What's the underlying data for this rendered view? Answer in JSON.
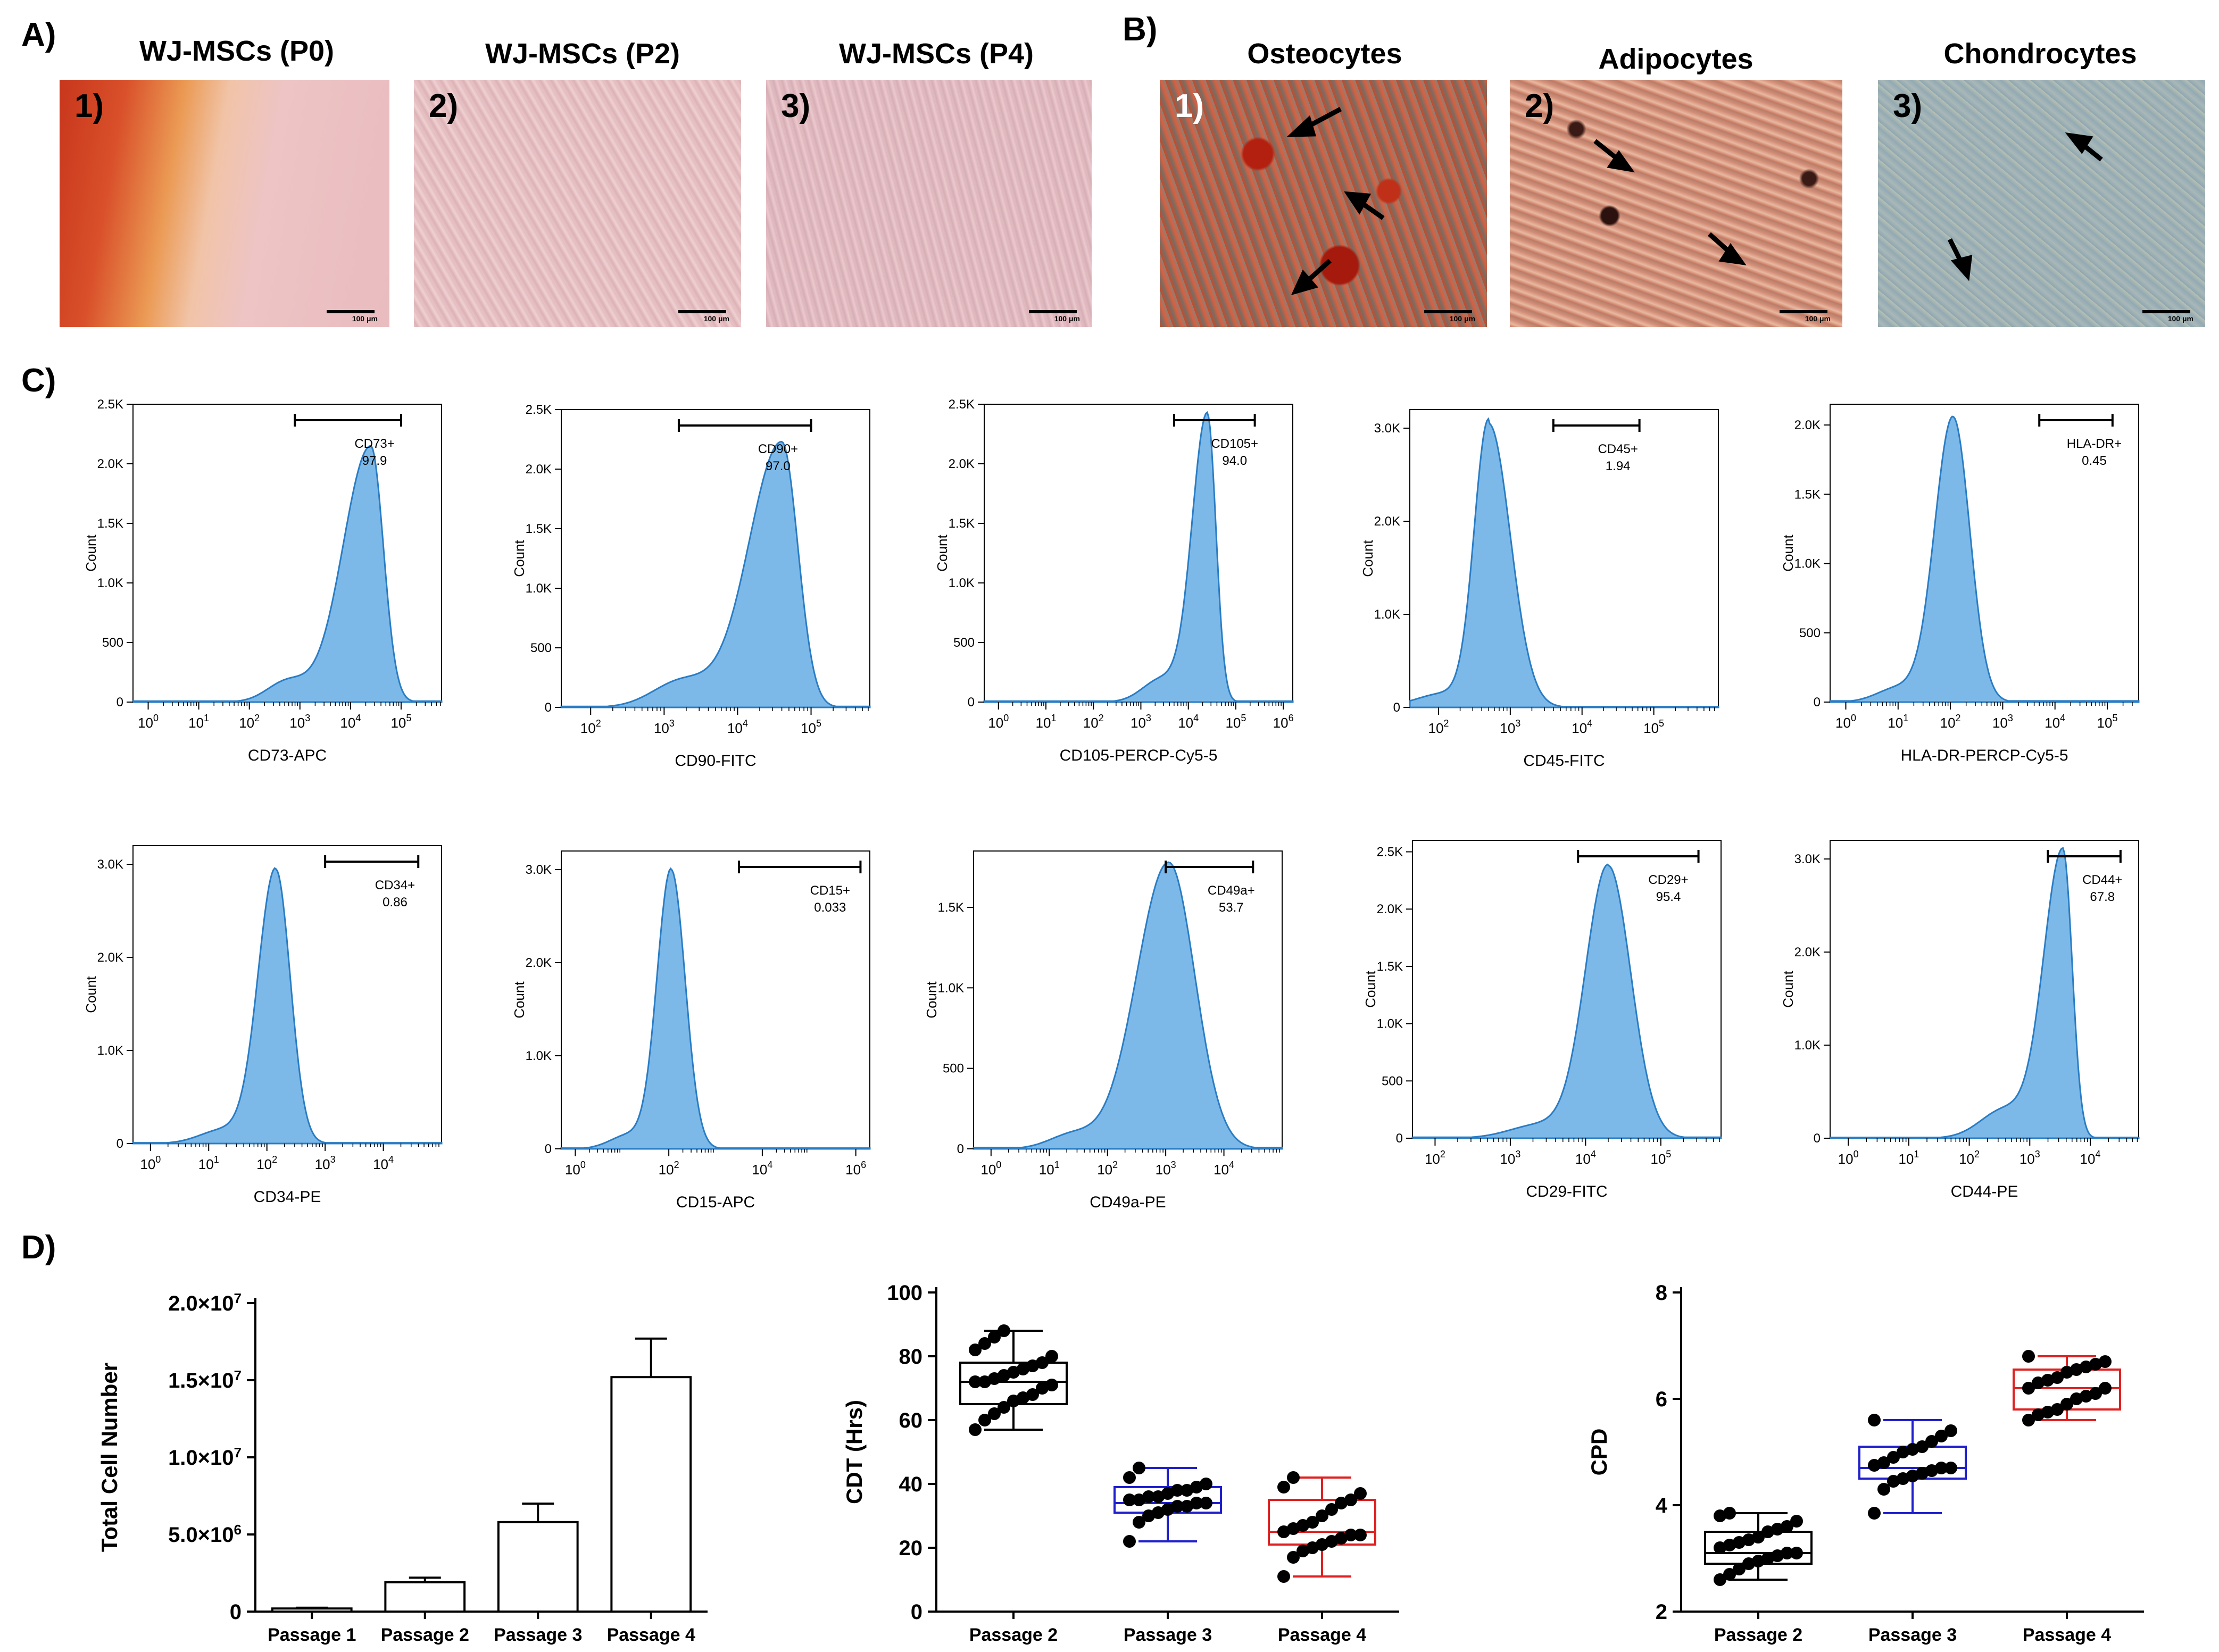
{
  "panel_labels": {
    "a": "A)",
    "b": "B)",
    "c": "C)",
    "d": "D)"
  },
  "panel_a": {
    "images": [
      {
        "title": "WJ-MSCs (P0)",
        "num": "1)",
        "scale": "100 μm"
      },
      {
        "title": "WJ-MSCs (P2)",
        "num": "2)",
        "scale": "100 μm"
      },
      {
        "title": "WJ-MSCs (P4)",
        "num": "3)",
        "scale": "100 μm"
      }
    ]
  },
  "panel_b": {
    "images": [
      {
        "title": "Osteocytes",
        "num": "1)",
        "scale": "100 μm"
      },
      {
        "title": "Adipocytes",
        "num": "2)",
        "scale": "100 μm"
      },
      {
        "title": "Chondrocytes",
        "num": "3)",
        "scale": "100 μm"
      }
    ]
  },
  "colors": {
    "histogram_fill": "#7db9e8",
    "histogram_line": "#2a7dc4",
    "box_p2": "#000000",
    "box_p3": "#1f1fcc",
    "box_p4": "#e02020"
  },
  "chart_data": [
    {
      "type": "area",
      "ylabel": "Count",
      "xlabel": "CD73-APC",
      "yticks": [
        "0",
        "500",
        "1.0K",
        "1.5K",
        "2.0K",
        "2.5K"
      ],
      "ylim": [
        0,
        2500
      ],
      "xticks": [
        "10<tspan dy='-12' font-size='16'>0</tspan>",
        "10<tspan dy='-12' font-size='16'>1</tspan>",
        "10<tspan dy='-12' font-size='16'>2</tspan>",
        "10<tspan dy='-12' font-size='16'>3</tspan>",
        "10<tspan dy='-12' font-size='16'>4</tspan>",
        "10<tspan dy='-12' font-size='16'>5</tspan>"
      ],
      "xt_exp": [
        0,
        1,
        2,
        3,
        4,
        5
      ],
      "xmin": -0.3,
      "xmax": 5.8,
      "gate_name": "CD73+",
      "gate_value": "97.9",
      "gate": [
        2.9,
        5.0
      ],
      "peak_x": 4.4,
      "peak_y": 2150,
      "sigma_l": 0.55,
      "sigma_r": 0.25,
      "tail": 0.08
    },
    {
      "type": "area",
      "ylabel": "Count",
      "xlabel": "CD90-FITC",
      "yticks": [
        "0",
        "500",
        "1.0K",
        "1.5K",
        "2.0K",
        "2.5K"
      ],
      "ylim": [
        0,
        2500
      ],
      "xt_exp": [
        2,
        3,
        4,
        5
      ],
      "xmin": 1.6,
      "xmax": 5.8,
      "gate_name": "CD90+",
      "gate_value": "97.0",
      "gate": [
        3.2,
        5.0
      ],
      "peak_x": 4.6,
      "peak_y": 2230,
      "sigma_l": 0.45,
      "sigma_r": 0.22,
      "tail": 0.1
    },
    {
      "type": "area",
      "ylabel": "Count",
      "xlabel": "CD105-PERCP-Cy5-5",
      "yticks": [
        "0",
        "500",
        "1.0K",
        "1.5K",
        "2.0K",
        "2.5K"
      ],
      "ylim": [
        0,
        2500
      ],
      "xt_exp": [
        0,
        1,
        2,
        3,
        4,
        5,
        6
      ],
      "xmin": -0.3,
      "xmax": 6.2,
      "gate_name": "CD105+",
      "gate_value": "94.0",
      "gate": [
        3.7,
        5.4
      ],
      "peak_x": 4.4,
      "peak_y": 2420,
      "sigma_l": 0.32,
      "sigma_r": 0.18,
      "tail": 0.08
    },
    {
      "type": "area",
      "ylabel": "Count",
      "xlabel": "CD45-FITC",
      "yticks": [
        "0",
        "1.0K",
        "2.0K",
        "3.0K"
      ],
      "ylim": [
        0,
        3200
      ],
      "xt_exp": [
        2,
        3,
        4,
        5
      ],
      "xmin": 1.6,
      "xmax": 5.9,
      "gate_name": "CD45+",
      "gate_value": "1.94",
      "gate": [
        3.6,
        4.8
      ],
      "peak_x": 2.7,
      "peak_y": 3050,
      "sigma_l": 0.2,
      "sigma_r": 0.3,
      "tail": 0.05
    },
    {
      "type": "area",
      "ylabel": "Count",
      "xlabel": "HLA-DR-PERCP-Cy5-5",
      "yticks": [
        "0",
        "500",
        "1.0K",
        "1.5K",
        "2.0K"
      ],
      "ylim": [
        0,
        2150
      ],
      "xt_exp": [
        0,
        1,
        2,
        3,
        4,
        5
      ],
      "xmin": -0.3,
      "xmax": 5.6,
      "gate_name": "HLA-DR+",
      "gate_value": "0.45",
      "gate": [
        3.7,
        5.1
      ],
      "peak_x": 2.05,
      "peak_y": 2060,
      "sigma_l": 0.35,
      "sigma_r": 0.32,
      "tail": 0.05
    },
    {
      "type": "area",
      "ylabel": "Count",
      "xlabel": "CD34-PE",
      "yticks": [
        "0",
        "1.0K",
        "2.0K",
        "3.0K"
      ],
      "ylim": [
        0,
        3200
      ],
      "xt_exp": [
        0,
        1,
        2,
        3,
        4
      ],
      "xmin": -0.3,
      "xmax": 5.0,
      "gate_name": "CD34+",
      "gate_value": "0.86",
      "gate": [
        3.0,
        4.6
      ],
      "peak_x": 2.15,
      "peak_y": 2950,
      "sigma_l": 0.3,
      "sigma_r": 0.25,
      "tail": 0.05
    },
    {
      "type": "area",
      "ylabel": "Count",
      "xlabel": "CD15-APC",
      "yticks": [
        "0",
        "1.0K",
        "2.0K",
        "3.0K"
      ],
      "ylim": [
        0,
        3200
      ],
      "xt_exp": [
        0,
        2,
        4,
        6
      ],
      "xmin": -0.3,
      "xmax": 6.3,
      "gate_name": "CD15+",
      "gate_value": "0.033",
      "gate": [
        3.5,
        6.1
      ],
      "peak_x": 2.05,
      "peak_y": 3000,
      "sigma_l": 0.3,
      "sigma_r": 0.3,
      "tail": 0.05
    },
    {
      "type": "area",
      "ylabel": "Count",
      "xlabel": "CD49a-PE",
      "yticks": [
        "0",
        "500",
        "1.0K",
        "1.5K"
      ],
      "ylim": [
        0,
        1850
      ],
      "xt_exp": [
        0,
        1,
        2,
        3,
        4
      ],
      "xmin": -0.3,
      "xmax": 5.0,
      "gate_name": "CD49a+",
      "gate_value": "53.7",
      "gate": [
        3.0,
        4.5
      ],
      "peak_x": 3.05,
      "peak_y": 1780,
      "sigma_l": 0.55,
      "sigma_r": 0.45,
      "tail": 0.05
    },
    {
      "type": "area",
      "ylabel": "Count",
      "xlabel": "CD29-FITC",
      "yticks": [
        "0",
        "500",
        "1.0K",
        "1.5K",
        "2.0K",
        "2.5K"
      ],
      "ylim": [
        0,
        2600
      ],
      "xt_exp": [
        2,
        3,
        4,
        5
      ],
      "xmin": 1.7,
      "xmax": 5.8,
      "gate_name": "CD29+",
      "gate_value": "95.4",
      "gate": [
        3.9,
        5.5
      ],
      "peak_x": 4.3,
      "peak_y": 2380,
      "sigma_l": 0.3,
      "sigma_r": 0.3,
      "tail": 0.05
    },
    {
      "type": "area",
      "ylabel": "Count",
      "xlabel": "CD44-PE",
      "yticks": [
        "0",
        "1.0K",
        "2.0K",
        "3.0K"
      ],
      "ylim": [
        0,
        3200
      ],
      "xt_exp": [
        0,
        1,
        2,
        3,
        4
      ],
      "xmin": -0.3,
      "xmax": 4.8,
      "gate_name": "CD44+",
      "gate_value": "67.8",
      "gate": [
        3.3,
        4.5
      ],
      "peak_x": 3.55,
      "peak_y": 3100,
      "sigma_l": 0.32,
      "sigma_r": 0.15,
      "tail": 0.1
    },
    {
      "type": "bar",
      "ylabel": "Total Cell Number",
      "categories": [
        "Passage 1",
        "Passage 2",
        "Passage 3",
        "Passage 4"
      ],
      "values": [
        200000,
        1900000,
        5800000,
        15200000
      ],
      "errors": [
        50000,
        300000,
        1200000,
        2500000
      ],
      "ylim": [
        0,
        20000000
      ],
      "yticks": [
        "0",
        "5.0×10<tspan dy='-14' font-size='26'>6</tspan>",
        "1.0×10<tspan dy='-14' font-size='26'>7</tspan>",
        "1.5×10<tspan dy='-14' font-size='26'>7</tspan>",
        "2.0×10<tspan dy='-14' font-size='26'>7</tspan>"
      ]
    },
    {
      "type": "box",
      "ylabel": "CDT (Hrs)",
      "categories": [
        "Passage 2",
        "Passage 3",
        "Passage 4"
      ],
      "ylim": [
        0,
        100
      ],
      "yticks": [
        "0",
        "20",
        "40",
        "60",
        "80",
        "100"
      ],
      "boxes": [
        {
          "min": 57,
          "q1": 65,
          "median": 72,
          "q3": 78,
          "max": 88
        },
        {
          "min": 22,
          "q1": 31,
          "median": 34,
          "q3": 39,
          "max": 45
        },
        {
          "min": 11,
          "q1": 21,
          "median": 25,
          "q3": 35,
          "max": 42
        }
      ],
      "points": [
        [
          57,
          60,
          62,
          64,
          66,
          67,
          68,
          70,
          71,
          72,
          72,
          73,
          74,
          75,
          76,
          77,
          78,
          80,
          82,
          84,
          86,
          88
        ],
        [
          22,
          28,
          30,
          31,
          32,
          33,
          33,
          34,
          34,
          35,
          35,
          36,
          36,
          37,
          38,
          38,
          39,
          40,
          42,
          45
        ],
        [
          11,
          17,
          19,
          20,
          21,
          22,
          23,
          24,
          24,
          25,
          26,
          27,
          28,
          30,
          32,
          34,
          35,
          37,
          39,
          42
        ]
      ]
    },
    {
      "type": "box",
      "ylabel": "CPD",
      "categories": [
        "Passage 2",
        "Passage 3",
        "Passage 4"
      ],
      "ylim": [
        2,
        8
      ],
      "yticks": [
        "2",
        "4",
        "6",
        "8"
      ],
      "boxes": [
        {
          "min": 2.6,
          "q1": 2.9,
          "median": 3.1,
          "q3": 3.5,
          "max": 3.85
        },
        {
          "min": 3.85,
          "q1": 4.5,
          "median": 4.7,
          "q3": 5.1,
          "max": 5.6
        },
        {
          "min": 5.6,
          "q1": 5.8,
          "median": 6.2,
          "q3": 6.55,
          "max": 6.8
        }
      ],
      "points": [
        [
          2.6,
          2.7,
          2.8,
          2.9,
          2.95,
          3.0,
          3.05,
          3.1,
          3.1,
          3.2,
          3.25,
          3.3,
          3.35,
          3.4,
          3.5,
          3.55,
          3.6,
          3.7,
          3.8,
          3.85
        ],
        [
          3.85,
          4.3,
          4.45,
          4.5,
          4.55,
          4.6,
          4.65,
          4.7,
          4.7,
          4.75,
          4.8,
          4.9,
          5.0,
          5.05,
          5.1,
          5.2,
          5.3,
          5.4,
          5.6
        ],
        [
          5.6,
          5.7,
          5.75,
          5.8,
          5.9,
          6.0,
          6.05,
          6.1,
          6.2,
          6.2,
          6.3,
          6.35,
          6.4,
          6.5,
          6.55,
          6.6,
          6.65,
          6.7,
          6.8
        ]
      ]
    }
  ]
}
